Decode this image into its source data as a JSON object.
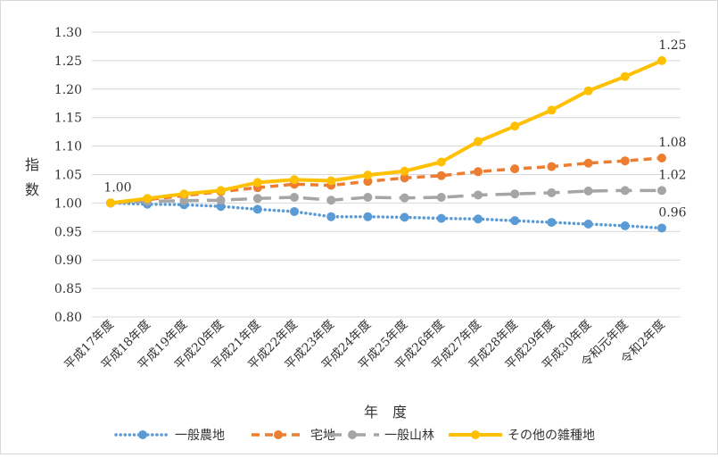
{
  "chart_data": {
    "type": "line",
    "ylabel": "指数",
    "xlabel": "年　度",
    "ylim": [
      0.8,
      1.3
    ],
    "yticks": [
      "1.30",
      "1.25",
      "1.20",
      "1.15",
      "1.10",
      "1.05",
      "1.00",
      "0.95",
      "0.90",
      "0.85",
      "0.80"
    ],
    "ytick_values": [
      1.3,
      1.25,
      1.2,
      1.15,
      1.1,
      1.05,
      1.0,
      0.95,
      0.9,
      0.85,
      0.8
    ],
    "categories": [
      "平成17年度",
      "平成18年度",
      "平成19年度",
      "平成20年度",
      "平成21年度",
      "平成22年度",
      "平成23年度",
      "平成24年度",
      "平成25年度",
      "平成26年度",
      "平成27年度",
      "平成28年度",
      "平成29年度",
      "平成30年度",
      "令和元年度",
      "令和2年度"
    ],
    "grid": true,
    "legend_position": "bottom",
    "series": [
      {
        "name": "一般農地",
        "color": "#5B9BD5",
        "style": "dotted",
        "values": [
          1.0,
          0.998,
          0.997,
          0.994,
          0.989,
          0.985,
          0.976,
          0.976,
          0.975,
          0.973,
          0.972,
          0.969,
          0.966,
          0.963,
          0.96,
          0.956
        ]
      },
      {
        "name": "宅地",
        "color": "#ED7D31",
        "style": "dashed",
        "values": [
          1.0,
          1.006,
          1.013,
          1.02,
          1.027,
          1.033,
          1.031,
          1.038,
          1.044,
          1.048,
          1.055,
          1.06,
          1.064,
          1.07,
          1.074,
          1.079
        ]
      },
      {
        "name": "一般山林",
        "color": "#A5A5A5",
        "style": "longdash",
        "values": [
          1.0,
          1.003,
          1.004,
          1.005,
          1.008,
          1.01,
          1.005,
          1.01,
          1.009,
          1.01,
          1.014,
          1.016,
          1.018,
          1.021,
          1.022,
          1.022
        ]
      },
      {
        "name": "その他の雑種地",
        "color": "#FFC000",
        "style": "solid",
        "values": [
          1.0,
          1.008,
          1.016,
          1.022,
          1.036,
          1.041,
          1.039,
          1.049,
          1.056,
          1.072,
          1.108,
          1.135,
          1.163,
          1.197,
          1.222,
          1.25
        ]
      }
    ],
    "annotations": [
      {
        "text": "1.00",
        "series": 3,
        "index": 0
      },
      {
        "text": "1.25",
        "series": 3,
        "index": 15
      },
      {
        "text": "1.08",
        "series": 1,
        "index": 15
      },
      {
        "text": "1.02",
        "series": 2,
        "index": 15
      },
      {
        "text": "0.96",
        "series": 0,
        "index": 15
      }
    ]
  }
}
